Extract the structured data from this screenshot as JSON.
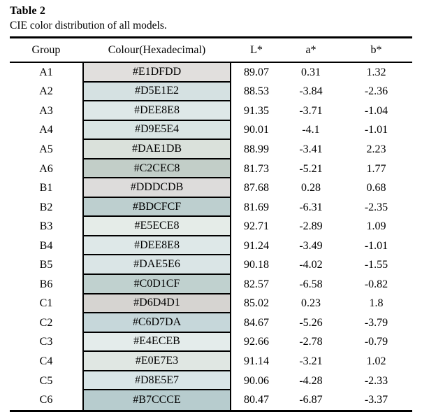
{
  "title": "Table 2",
  "caption": "CIE color distribution of all models.",
  "style": {
    "rule_color": "#000000",
    "text_color": "#000000",
    "background": "#ffffff"
  },
  "table": {
    "headers": [
      "Group",
      "Colour(Hexadecimal)",
      "L*",
      "a*",
      "b*"
    ],
    "rows": [
      {
        "group": "A1",
        "hex": "#E1DFDD",
        "l": "89.07",
        "a": "0.31",
        "b": "1.32"
      },
      {
        "group": "A2",
        "hex": "#D5E1E2",
        "l": "88.53",
        "a": "-3.84",
        "b": "-2.36"
      },
      {
        "group": "A3",
        "hex": "#DEE8E8",
        "l": "91.35",
        "a": "-3.71",
        "b": "-1.04"
      },
      {
        "group": "A4",
        "hex": "#D9E5E4",
        "l": "90.01",
        "a": "-4.1",
        "b": "-1.01"
      },
      {
        "group": "A5",
        "hex": "#DAE1DB",
        "l": "88.99",
        "a": "-3.41",
        "b": "2.23"
      },
      {
        "group": "A6",
        "hex": "#C2CEC8",
        "l": "81.73",
        "a": "-5.21",
        "b": "1.77"
      },
      {
        "group": "B1",
        "hex": "#DDDCDB",
        "l": "87.68",
        "a": "0.28",
        "b": "0.68"
      },
      {
        "group": "B2",
        "hex": "#BDCFCF",
        "l": "81.69",
        "a": "-6.31",
        "b": "-2.35"
      },
      {
        "group": "B3",
        "hex": "#E5ECE8",
        "l": "92.71",
        "a": "-2.89",
        "b": "1.09"
      },
      {
        "group": "B4",
        "hex": "#DEE8E8",
        "l": "91.24",
        "a": "-3.49",
        "b": "-1.01"
      },
      {
        "group": "B5",
        "hex": "#DAE5E6",
        "l": "90.18",
        "a": "-4.02",
        "b": "-1.55"
      },
      {
        "group": "B6",
        "hex": "#C0D1CF",
        "l": "82.57",
        "a": "-6.58",
        "b": "-0.82"
      },
      {
        "group": "C1",
        "hex": "#D6D4D1",
        "l": "85.02",
        "a": "0.23",
        "b": "1.8"
      },
      {
        "group": "C2",
        "hex": "#C6D7DA",
        "l": "84.67",
        "a": "-5.26",
        "b": "-3.79"
      },
      {
        "group": "C3",
        "hex": "#E4ECEB",
        "l": "92.66",
        "a": "-2.78",
        "b": "-0.79"
      },
      {
        "group": "C4",
        "hex": "#E0E7E3",
        "l": "91.14",
        "a": "-3.21",
        "b": "1.02"
      },
      {
        "group": "C5",
        "hex": "#D8E5E7",
        "l": "90.06",
        "a": "-4.28",
        "b": "-2.33"
      },
      {
        "group": "C6",
        "hex": "#B7CCCE",
        "l": "80.47",
        "a": "-6.87",
        "b": "-3.37"
      }
    ]
  }
}
